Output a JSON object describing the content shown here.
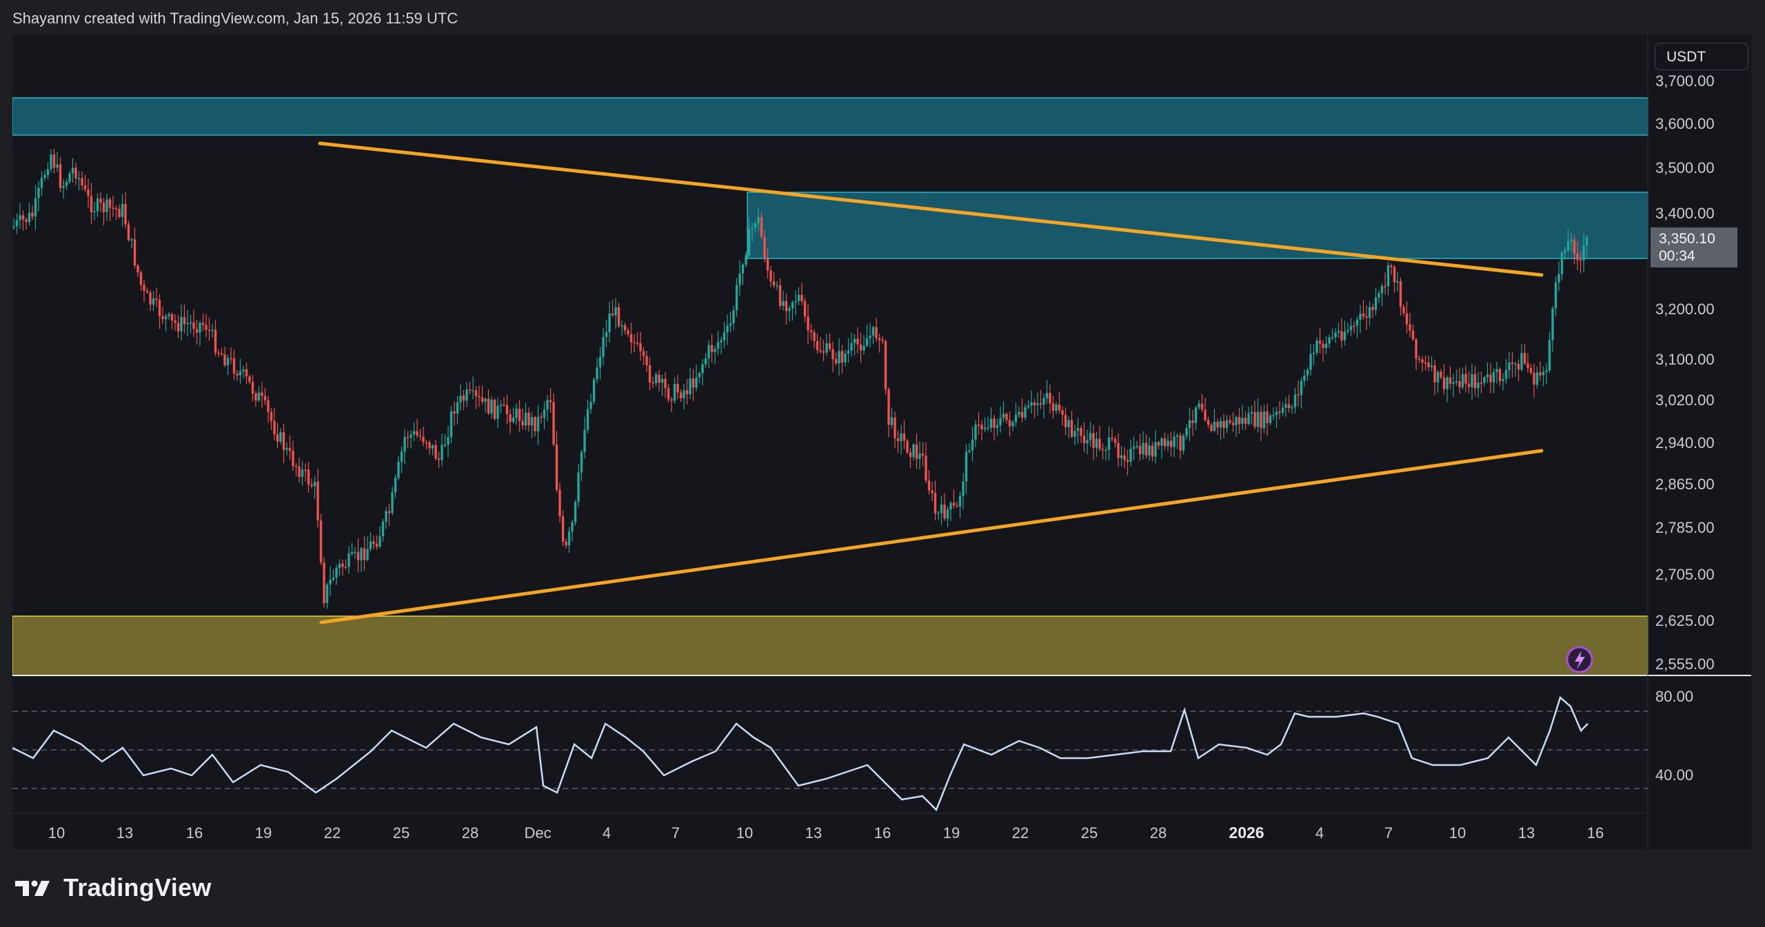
{
  "header": {
    "attribution": "Shayannv created with TradingView.com, Jan 15, 2026 11:59 UTC"
  },
  "price_axis": {
    "currency": "USDT",
    "tick_labels": [
      "3,700.00",
      "3,600.00",
      "3,500.00",
      "3,400.00",
      "3,200.00",
      "3,100.00",
      "3,020.00",
      "2,940.00",
      "2,865.00",
      "2,785.00",
      "2,705.00",
      "2,625.00",
      "2,555.00"
    ],
    "last_price": "3,350.10",
    "countdown": "00:34"
  },
  "time_axis": {
    "labels": [
      "10",
      "13",
      "16",
      "19",
      "22",
      "25",
      "28",
      "Dec",
      "4",
      "7",
      "10",
      "13",
      "16",
      "19",
      "22",
      "25",
      "28",
      "2026",
      "4",
      "7",
      "10",
      "13",
      "16"
    ],
    "bold_labels": [
      "2026"
    ]
  },
  "rsi_axis": {
    "labels": [
      "80.00",
      "40.00"
    ]
  },
  "colors": {
    "background": "#15161b",
    "bull_candle": "#26a69a",
    "bear_candle": "#ef5350",
    "trendline": "#f5a524",
    "resistance_zone": "#17596a",
    "support_zone": "#71692f",
    "rsi_line": "#c7dcf5"
  },
  "icons": {
    "footer": "tradingview-logo-icon",
    "indicator": "lightning-icon"
  },
  "footer": {
    "brand": "TradingView"
  }
}
